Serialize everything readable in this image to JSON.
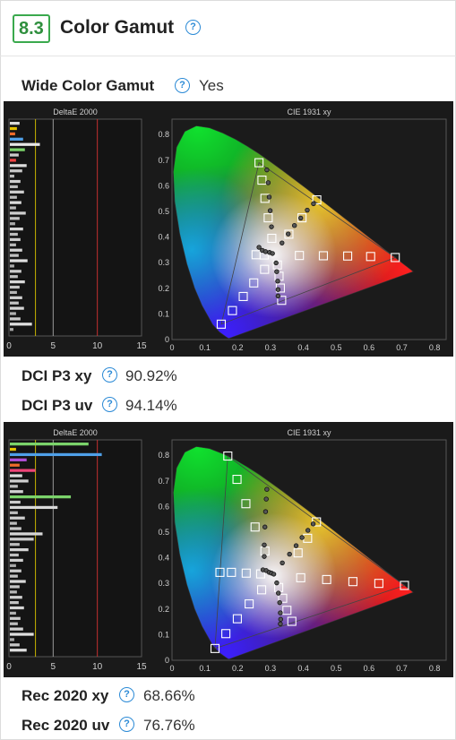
{
  "section": {
    "number": "8.3",
    "title": "Color Gamut"
  },
  "wide_gamut": {
    "label": "Wide Color Gamut",
    "value": "Yes"
  },
  "chart_panels": [
    {
      "deltae": {
        "title": "DeltaE 2000",
        "ticks": [
          "0",
          "5",
          "10",
          "15"
        ],
        "bars": [
          {
            "value": 1.2,
            "color": "#d8d8d8"
          },
          {
            "value": 0.9,
            "color": "#e5c100"
          },
          {
            "value": 0.7,
            "color": "#ee6b2b"
          },
          {
            "value": 1.6,
            "color": "#4fa0e8"
          },
          {
            "value": 3.5,
            "color": "#e8e8e8"
          },
          {
            "value": 1.8,
            "color": "#7bd36a"
          },
          {
            "value": 1.1,
            "color": "#cccccc"
          },
          {
            "value": 0.8,
            "color": "#e44"
          },
          {
            "value": 2.0,
            "color": "#dcdcdc"
          },
          {
            "value": 1.5,
            "color": "#c7c7c7"
          },
          {
            "value": 0.6,
            "color": "#bbb"
          },
          {
            "value": 1.3,
            "color": "#d0d0d0"
          },
          {
            "value": 1.0,
            "color": "#bdbdbd"
          },
          {
            "value": 1.7,
            "color": "#cfcfcf"
          },
          {
            "value": 0.9,
            "color": "#bbbbbb"
          },
          {
            "value": 1.4,
            "color": "#dddddd"
          },
          {
            "value": 0.8,
            "color": "#bbb"
          },
          {
            "value": 1.9,
            "color": "#cfcfcf"
          },
          {
            "value": 1.2,
            "color": "#c4c4c4"
          },
          {
            "value": 0.7,
            "color": "#aaa"
          },
          {
            "value": 1.6,
            "color": "#d6d6d6"
          },
          {
            "value": 1.0,
            "color": "#bdbdbd"
          },
          {
            "value": 1.3,
            "color": "#cccccc"
          },
          {
            "value": 0.8,
            "color": "#bbb"
          },
          {
            "value": 1.5,
            "color": "#d3d3d3"
          },
          {
            "value": 1.1,
            "color": "#c1c1c1"
          },
          {
            "value": 2.1,
            "color": "#e0e0e0"
          },
          {
            "value": 0.6,
            "color": "#aaa"
          },
          {
            "value": 1.4,
            "color": "#cccccc"
          },
          {
            "value": 1.0,
            "color": "#c0c0c0"
          },
          {
            "value": 1.8,
            "color": "#d9d9d9"
          },
          {
            "value": 1.2,
            "color": "#c7c7c7"
          },
          {
            "value": 0.9,
            "color": "#b5b5b5"
          },
          {
            "value": 1.5,
            "color": "#d0d0d0"
          },
          {
            "value": 1.1,
            "color": "#c2c2c2"
          },
          {
            "value": 1.7,
            "color": "#d5d5d5"
          },
          {
            "value": 0.8,
            "color": "#b0b0b0"
          },
          {
            "value": 1.3,
            "color": "#cacaca"
          },
          {
            "value": 2.6,
            "color": "#e0e0e0"
          },
          {
            "value": 0.5,
            "color": "#aaa"
          }
        ]
      },
      "cie": {
        "title": "CIE 1931 xy",
        "x_ticks": [
          "0",
          "0.1",
          "0.2",
          "0.3",
          "0.4",
          "0.5",
          "0.6",
          "0.7",
          "0.8"
        ],
        "y_ticks": [
          "0",
          "0.1",
          "0.2",
          "0.3",
          "0.4",
          "0.5",
          "0.6",
          "0.7",
          "0.8"
        ],
        "gamut": [
          [
            0.68,
            0.32
          ],
          [
            0.265,
            0.69
          ],
          [
            0.15,
            0.06
          ]
        ],
        "white": [
          0.3127,
          0.329
        ],
        "targets": [
          [
            0.68,
            0.32
          ],
          [
            0.605,
            0.324
          ],
          [
            0.535,
            0.326
          ],
          [
            0.461,
            0.327
          ],
          [
            0.388,
            0.328
          ],
          [
            0.265,
            0.69
          ],
          [
            0.274,
            0.622
          ],
          [
            0.283,
            0.551
          ],
          [
            0.293,
            0.475
          ],
          [
            0.304,
            0.395
          ],
          [
            0.15,
            0.06
          ],
          [
            0.184,
            0.113
          ],
          [
            0.217,
            0.168
          ],
          [
            0.249,
            0.221
          ],
          [
            0.282,
            0.274
          ],
          [
            0.441,
            0.545
          ],
          [
            0.396,
            0.475
          ],
          [
            0.356,
            0.411
          ],
          [
            0.334,
            0.153
          ],
          [
            0.33,
            0.201
          ],
          [
            0.326,
            0.247
          ],
          [
            0.321,
            0.291
          ],
          [
            0.256,
            0.331
          ],
          [
            0.281,
            0.33
          ]
        ],
        "measured": [
          [
            0.289,
            0.662
          ],
          [
            0.293,
            0.612
          ],
          [
            0.296,
            0.556
          ],
          [
            0.299,
            0.503
          ],
          [
            0.303,
            0.44
          ],
          [
            0.431,
            0.53
          ],
          [
            0.412,
            0.505
          ],
          [
            0.392,
            0.474
          ],
          [
            0.373,
            0.445
          ],
          [
            0.354,
            0.412
          ],
          [
            0.335,
            0.377
          ],
          [
            0.265,
            0.36
          ],
          [
            0.275,
            0.348
          ],
          [
            0.285,
            0.343
          ],
          [
            0.297,
            0.34
          ],
          [
            0.306,
            0.336
          ],
          [
            0.317,
            0.299
          ],
          [
            0.319,
            0.265
          ],
          [
            0.322,
            0.228
          ],
          [
            0.323,
            0.195
          ],
          [
            0.323,
            0.17
          ]
        ]
      },
      "stats": [
        {
          "label": "DCI P3 xy",
          "value": "90.92%"
        },
        {
          "label": "DCI P3 uv",
          "value": "94.14%"
        }
      ]
    },
    {
      "deltae": {
        "title": "DeltaE 2000",
        "ticks": [
          "0",
          "5",
          "10",
          "15"
        ],
        "bars": [
          {
            "value": 9.0,
            "color": "#7bd36a"
          },
          {
            "value": 0.8,
            "color": "#e5c100"
          },
          {
            "value": 10.5,
            "color": "#4fa0e8"
          },
          {
            "value": 2.0,
            "color": "#b04fd8"
          },
          {
            "value": 1.2,
            "color": "#ee6b2b"
          },
          {
            "value": 3.0,
            "color": "#ee4477"
          },
          {
            "value": 1.5,
            "color": "#dcdcdc"
          },
          {
            "value": 2.2,
            "color": "#cfcfcf"
          },
          {
            "value": 1.0,
            "color": "#bdbdbd"
          },
          {
            "value": 1.6,
            "color": "#d0d0d0"
          },
          {
            "value": 7.0,
            "color": "#7bd36a"
          },
          {
            "value": 1.3,
            "color": "#cccccc"
          },
          {
            "value": 5.5,
            "color": "#d8d8d8"
          },
          {
            "value": 1.0,
            "color": "#bbbbbb"
          },
          {
            "value": 1.8,
            "color": "#cfcfcf"
          },
          {
            "value": 0.9,
            "color": "#bbb"
          },
          {
            "value": 1.4,
            "color": "#c7c7c7"
          },
          {
            "value": 3.8,
            "color": "#d6d6d6"
          },
          {
            "value": 2.8,
            "color": "#cccccc"
          },
          {
            "value": 1.2,
            "color": "#bdbdbd"
          },
          {
            "value": 2.2,
            "color": "#d3d3d3"
          },
          {
            "value": 1.1,
            "color": "#c1c1c1"
          },
          {
            "value": 1.6,
            "color": "#d0d0d0"
          },
          {
            "value": 0.8,
            "color": "#aaa"
          },
          {
            "value": 1.4,
            "color": "#cccccc"
          },
          {
            "value": 1.0,
            "color": "#c0c0c0"
          },
          {
            "value": 1.9,
            "color": "#d9d9d9"
          },
          {
            "value": 1.2,
            "color": "#c7c7c7"
          },
          {
            "value": 0.9,
            "color": "#b5b5b5"
          },
          {
            "value": 1.5,
            "color": "#d0d0d0"
          },
          {
            "value": 1.1,
            "color": "#c2c2c2"
          },
          {
            "value": 1.7,
            "color": "#d5d5d5"
          },
          {
            "value": 0.8,
            "color": "#b0b0b0"
          },
          {
            "value": 1.3,
            "color": "#cacaca"
          },
          {
            "value": 1.0,
            "color": "#bdbdbd"
          },
          {
            "value": 1.6,
            "color": "#d0d0d0"
          },
          {
            "value": 2.8,
            "color": "#e0e0e0"
          },
          {
            "value": 0.6,
            "color": "#aaa"
          },
          {
            "value": 1.2,
            "color": "#c7c7c7"
          },
          {
            "value": 2.0,
            "color": "#dddddd"
          }
        ]
      },
      "cie": {
        "title": "CIE 1931 xy",
        "x_ticks": [
          "0",
          "0.1",
          "0.2",
          "0.3",
          "0.4",
          "0.5",
          "0.6",
          "0.7",
          "0.8"
        ],
        "y_ticks": [
          "0",
          "0.1",
          "0.2",
          "0.3",
          "0.4",
          "0.5",
          "0.6",
          "0.7",
          "0.8"
        ],
        "gamut": [
          [
            0.708,
            0.292
          ],
          [
            0.17,
            0.797
          ],
          [
            0.131,
            0.046
          ]
        ],
        "white": [
          0.3127,
          0.329
        ],
        "targets": [
          [
            0.708,
            0.292
          ],
          [
            0.63,
            0.3
          ],
          [
            0.551,
            0.307
          ],
          [
            0.471,
            0.315
          ],
          [
            0.392,
            0.322
          ],
          [
            0.17,
            0.797
          ],
          [
            0.198,
            0.706
          ],
          [
            0.225,
            0.611
          ],
          [
            0.253,
            0.52
          ],
          [
            0.283,
            0.426
          ],
          [
            0.131,
            0.046
          ],
          [
            0.164,
            0.104
          ],
          [
            0.199,
            0.162
          ],
          [
            0.235,
            0.22
          ],
          [
            0.273,
            0.275
          ],
          [
            0.44,
            0.54
          ],
          [
            0.413,
            0.476
          ],
          [
            0.384,
            0.419
          ],
          [
            0.365,
            0.152
          ],
          [
            0.35,
            0.195
          ],
          [
            0.337,
            0.242
          ],
          [
            0.325,
            0.284
          ],
          [
            0.146,
            0.343
          ],
          [
            0.181,
            0.343
          ],
          [
            0.226,
            0.34
          ],
          [
            0.27,
            0.337
          ]
        ],
        "measured": [
          [
            0.289,
            0.667
          ],
          [
            0.287,
            0.629
          ],
          [
            0.285,
            0.58
          ],
          [
            0.283,
            0.52
          ],
          [
            0.281,
            0.45
          ],
          [
            0.281,
            0.405
          ],
          [
            0.43,
            0.532
          ],
          [
            0.414,
            0.507
          ],
          [
            0.396,
            0.479
          ],
          [
            0.378,
            0.447
          ],
          [
            0.358,
            0.414
          ],
          [
            0.336,
            0.38
          ],
          [
            0.277,
            0.353
          ],
          [
            0.287,
            0.35
          ],
          [
            0.296,
            0.343
          ],
          [
            0.303,
            0.34
          ],
          [
            0.31,
            0.336
          ],
          [
            0.319,
            0.302
          ],
          [
            0.324,
            0.262
          ],
          [
            0.328,
            0.225
          ],
          [
            0.33,
            0.185
          ],
          [
            0.331,
            0.16
          ],
          [
            0.33,
            0.142
          ]
        ]
      },
      "stats": [
        {
          "label": "Rec 2020 xy",
          "value": "68.66%"
        },
        {
          "label": "Rec 2020 uv",
          "value": "76.76%"
        }
      ]
    }
  ]
}
